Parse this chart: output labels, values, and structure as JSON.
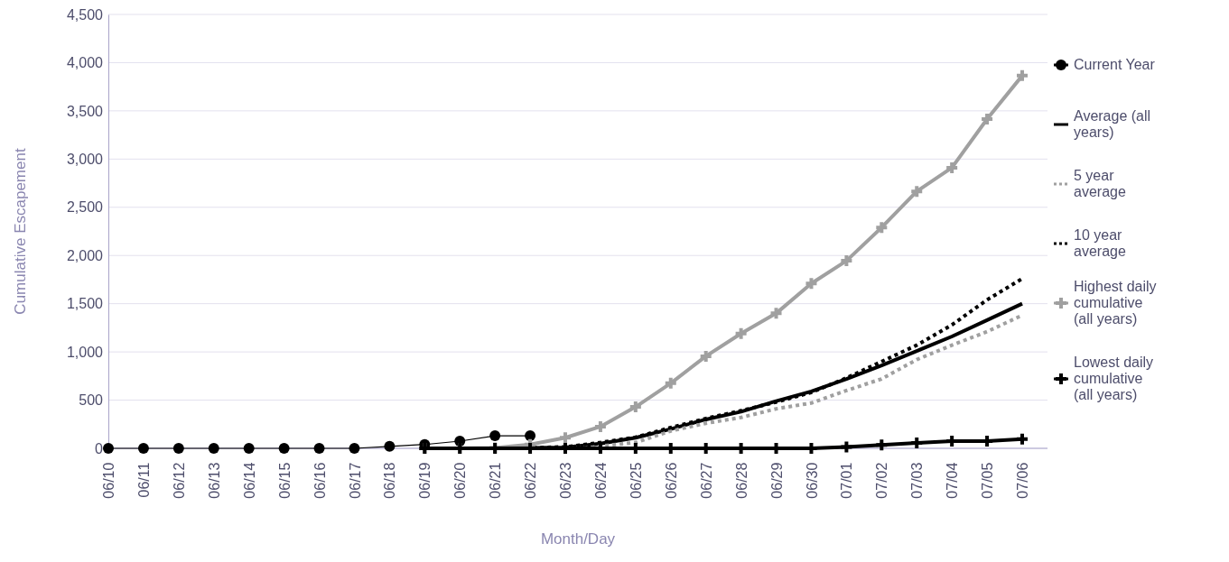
{
  "chart_data": {
    "type": "line",
    "xlabel": "Month/Day",
    "ylabel": "Cumulative Escapement",
    "categories": [
      "06/10",
      "06/11",
      "06/12",
      "06/13",
      "06/14",
      "06/15",
      "06/16",
      "06/17",
      "06/18",
      "06/19",
      "06/20",
      "06/21",
      "06/22",
      "06/23",
      "06/24",
      "06/25",
      "06/26",
      "06/27",
      "06/28",
      "06/29",
      "06/30",
      "07/01",
      "07/02",
      "07/03",
      "07/04",
      "07/05",
      "07/06"
    ],
    "ylim": [
      0,
      4500
    ],
    "yticks": [
      {
        "value": 0,
        "label": "0"
      },
      {
        "value": 500,
        "label": "500"
      },
      {
        "value": 1000,
        "label": "1,000"
      },
      {
        "value": 1500,
        "label": "1,500"
      },
      {
        "value": 2000,
        "label": "2,000"
      },
      {
        "value": 2500,
        "label": "2,500"
      },
      {
        "value": 3000,
        "label": "3,000"
      },
      {
        "value": 3500,
        "label": "3,500"
      },
      {
        "value": 4000,
        "label": "4,000"
      },
      {
        "value": 4500,
        "label": "4,500"
      }
    ],
    "grid": "y",
    "legend": "right",
    "series": [
      {
        "name": "Current Year",
        "color": "#000000",
        "marker": "circle",
        "line_style": "solid",
        "values": [
          0,
          0,
          0,
          0,
          0,
          0,
          0,
          0,
          20,
          40,
          75,
          130,
          130,
          null,
          null,
          null,
          null,
          null,
          null,
          null,
          null,
          null,
          null,
          null,
          null,
          null,
          null
        ]
      },
      {
        "name": "Average (all years)",
        "color": "#000000",
        "marker": "none",
        "line_style": "solid",
        "values": [
          null,
          null,
          null,
          null,
          null,
          null,
          null,
          null,
          null,
          0,
          0,
          0,
          5,
          10,
          50,
          110,
          200,
          300,
          380,
          490,
          590,
          720,
          860,
          1010,
          1160,
          1330,
          1500
        ]
      },
      {
        "name": "5 year average",
        "color": "#a0a0a0",
        "marker": "none",
        "line_style": "dotted",
        "values": [
          null,
          null,
          null,
          null,
          null,
          null,
          null,
          null,
          null,
          0,
          0,
          0,
          0,
          5,
          25,
          60,
          180,
          260,
          320,
          410,
          470,
          600,
          720,
          920,
          1070,
          1210,
          1380
        ]
      },
      {
        "name": "10 year average",
        "color": "#000000",
        "marker": "none",
        "line_style": "dotted",
        "values": [
          null,
          null,
          null,
          null,
          null,
          null,
          null,
          null,
          null,
          0,
          0,
          0,
          5,
          15,
          60,
          115,
          215,
          310,
          390,
          480,
          580,
          730,
          900,
          1070,
          1280,
          1540,
          1760
        ]
      },
      {
        "name": "Highest daily cumulative (all years)",
        "color": "#a0a0a0",
        "marker": "cross",
        "line_style": "solid",
        "values": [
          null,
          null,
          null,
          null,
          null,
          null,
          null,
          null,
          null,
          0,
          0,
          5,
          40,
          110,
          225,
          430,
          675,
          955,
          1190,
          1400,
          1710,
          1945,
          2290,
          2665,
          2910,
          3415,
          3865
        ]
      },
      {
        "name": "Lowest daily cumulative (all years)",
        "color": "#000000",
        "marker": "cross",
        "line_style": "solid",
        "values": [
          null,
          null,
          null,
          null,
          null,
          null,
          null,
          null,
          null,
          0,
          0,
          0,
          0,
          0,
          0,
          0,
          0,
          0,
          0,
          0,
          0,
          15,
          35,
          55,
          75,
          75,
          95
        ]
      }
    ]
  }
}
